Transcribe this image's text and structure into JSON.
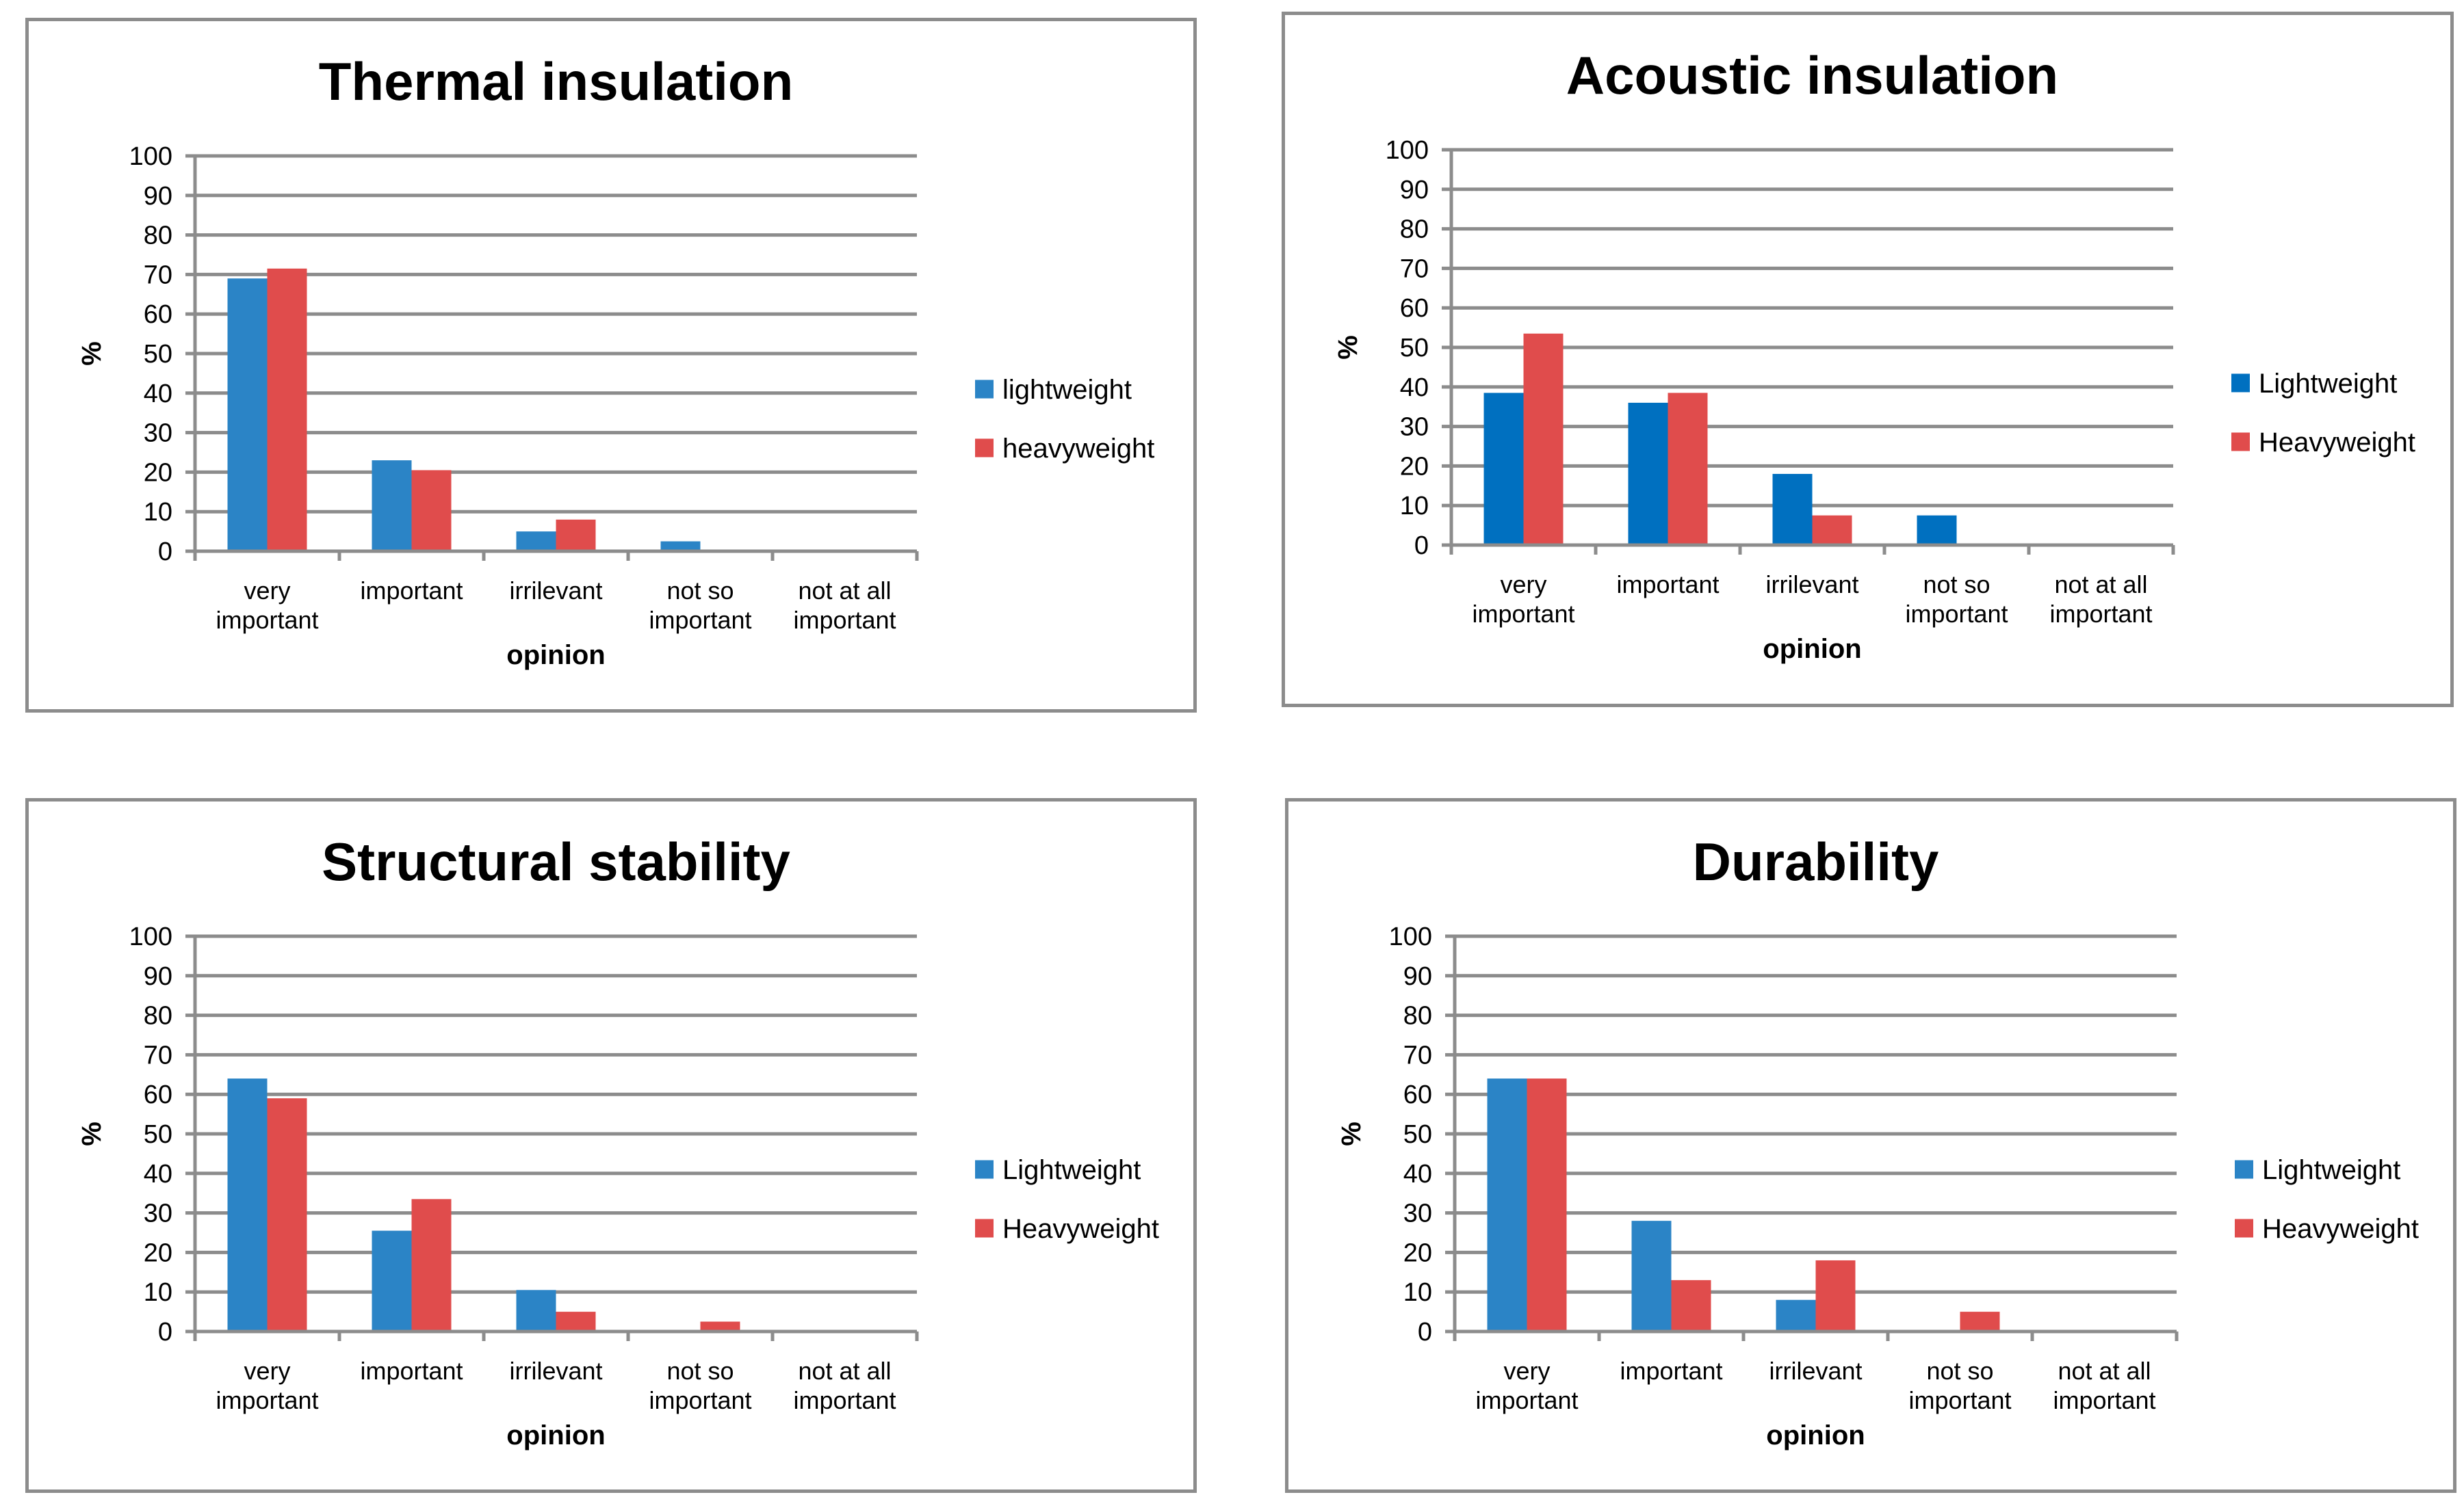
{
  "colors": {
    "lightweight": "#2b84c6",
    "lightweight_alt": "#0070c0",
    "heavyweight": "#e04c4c",
    "gridline": "#8c8c8c",
    "frame": "#8c8c8c"
  },
  "chart_data": [
    {
      "type": "bar",
      "title": "Thermal insulation",
      "xlabel": "opinion",
      "ylabel": "%",
      "ylim": [
        0,
        100
      ],
      "yticks": [
        "0",
        "10",
        "20",
        "30",
        "40",
        "50",
        "60",
        "70",
        "80",
        "90",
        "100"
      ],
      "categories": [
        [
          "very",
          "important"
        ],
        [
          "important"
        ],
        [
          "irrilevant"
        ],
        [
          "not so",
          "important"
        ],
        [
          "not at all",
          "important"
        ]
      ],
      "series": [
        {
          "name": "lightweight",
          "color": "#2b84c6",
          "values": [
            69,
            23,
            5,
            2.5,
            0
          ]
        },
        {
          "name": "heavyweight",
          "color": "#e04c4c",
          "values": [
            71.5,
            20.5,
            8,
            0,
            0
          ]
        }
      ],
      "legend_position": "right",
      "grid": true
    },
    {
      "type": "bar",
      "title": "Acoustic insulation",
      "xlabel": "opinion",
      "ylabel": "%",
      "ylim": [
        0,
        100
      ],
      "yticks": [
        "0",
        "10",
        "20",
        "30",
        "40",
        "50",
        "60",
        "70",
        "80",
        "90",
        "100"
      ],
      "categories": [
        [
          "very",
          "important"
        ],
        [
          "important"
        ],
        [
          "irrilevant"
        ],
        [
          "not so",
          "important"
        ],
        [
          "not at all",
          "important"
        ]
      ],
      "series": [
        {
          "name": "Lightweight",
          "color": "#0070c0",
          "values": [
            38.5,
            36,
            18,
            7.5,
            0
          ]
        },
        {
          "name": "Heavyweight",
          "color": "#e04c4c",
          "values": [
            53.5,
            38.5,
            7.5,
            0,
            0
          ]
        }
      ],
      "legend_position": "right",
      "grid": true
    },
    {
      "type": "bar",
      "title": "Structural stability",
      "xlabel": "opinion",
      "ylabel": "%",
      "ylim": [
        0,
        100
      ],
      "yticks": [
        "0",
        "10",
        "20",
        "30",
        "40",
        "50",
        "60",
        "70",
        "80",
        "90",
        "100"
      ],
      "categories": [
        [
          "very",
          "important"
        ],
        [
          "important"
        ],
        [
          "irrilevant"
        ],
        [
          "not so",
          "important"
        ],
        [
          "not at all",
          "important"
        ]
      ],
      "series": [
        {
          "name": "Lightweight",
          "color": "#2b84c6",
          "values": [
            64,
            25.5,
            10.5,
            0,
            0
          ]
        },
        {
          "name": "Heavyweight",
          "color": "#e04c4c",
          "values": [
            59,
            33.5,
            5,
            2.5,
            0
          ]
        }
      ],
      "legend_position": "right",
      "grid": true
    },
    {
      "type": "bar",
      "title": "Durability",
      "xlabel": "opinion",
      "ylabel": "%",
      "ylim": [
        0,
        100
      ],
      "yticks": [
        "0",
        "10",
        "20",
        "30",
        "40",
        "50",
        "60",
        "70",
        "80",
        "90",
        "100"
      ],
      "categories": [
        [
          "very",
          "important"
        ],
        [
          "important"
        ],
        [
          "irrilevant"
        ],
        [
          "not so",
          "important"
        ],
        [
          "not at all",
          "important"
        ]
      ],
      "series": [
        {
          "name": "Lightweight",
          "color": "#2b84c6",
          "values": [
            64,
            28,
            8,
            0,
            0
          ]
        },
        {
          "name": "Heavyweight",
          "color": "#e04c4c",
          "values": [
            64,
            13,
            18,
            5,
            0
          ]
        }
      ],
      "legend_position": "right",
      "grid": true
    }
  ]
}
